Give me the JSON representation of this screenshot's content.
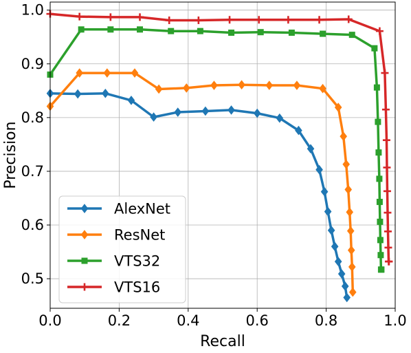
{
  "chart_data": {
    "type": "line",
    "xlabel": "Recall",
    "ylabel": "Precision",
    "xlim": [
      0.0,
      1.0
    ],
    "ylim": [
      0.445,
      1.015
    ],
    "x_ticks": [
      0.0,
      0.2,
      0.4,
      0.6,
      0.8,
      1.0
    ],
    "x_tick_labels": [
      "0.0",
      "0.2",
      "0.4",
      "0.6",
      "0.8",
      "1.0"
    ],
    "y_ticks": [
      0.5,
      0.6,
      0.7,
      0.8,
      0.9,
      1.0
    ],
    "y_tick_labels": [
      "0.5",
      "0.6",
      "0.7",
      "0.8",
      "0.9",
      "1.0"
    ],
    "grid": true,
    "legend_position": "bottom-left",
    "series": [
      {
        "name": "AlexNet",
        "color": "#1f77b4",
        "marker": "diamond",
        "x": [
          0.0,
          0.08,
          0.16,
          0.235,
          0.3,
          0.37,
          0.45,
          0.525,
          0.6,
          0.665,
          0.72,
          0.755,
          0.78,
          0.795,
          0.805,
          0.815,
          0.825,
          0.835,
          0.845,
          0.855,
          0.86
        ],
        "y": [
          0.845,
          0.844,
          0.845,
          0.832,
          0.801,
          0.81,
          0.812,
          0.814,
          0.808,
          0.799,
          0.776,
          0.742,
          0.703,
          0.662,
          0.625,
          0.59,
          0.56,
          0.532,
          0.509,
          0.486,
          0.465
        ]
      },
      {
        "name": "ResNet",
        "color": "#ff7f0e",
        "marker": "diamond",
        "x": [
          0.0,
          0.085,
          0.165,
          0.245,
          0.315,
          0.395,
          0.475,
          0.555,
          0.635,
          0.715,
          0.79,
          0.835,
          0.85,
          0.858,
          0.864,
          0.868,
          0.871,
          0.873,
          0.875,
          0.877
        ],
        "y": [
          0.821,
          0.883,
          0.883,
          0.883,
          0.853,
          0.855,
          0.86,
          0.861,
          0.86,
          0.86,
          0.854,
          0.819,
          0.765,
          0.713,
          0.666,
          0.624,
          0.589,
          0.553,
          0.522,
          0.475
        ]
      },
      {
        "name": "VTS32",
        "color": "#2ca02c",
        "marker": "square",
        "x": [
          0.0,
          0.09,
          0.175,
          0.26,
          0.35,
          0.435,
          0.525,
          0.61,
          0.7,
          0.79,
          0.875,
          0.94,
          0.947,
          0.95,
          0.952,
          0.954,
          0.955,
          0.956,
          0.957,
          0.958,
          0.959,
          0.96
        ],
        "y": [
          0.88,
          0.964,
          0.964,
          0.964,
          0.961,
          0.961,
          0.958,
          0.959,
          0.958,
          0.956,
          0.954,
          0.929,
          0.856,
          0.792,
          0.735,
          0.686,
          0.643,
          0.606,
          0.572,
          0.544,
          0.517,
          0.517
        ]
      },
      {
        "name": "VTS16",
        "color": "#d62728",
        "marker": "plus",
        "x": [
          0.0,
          0.085,
          0.175,
          0.26,
          0.345,
          0.43,
          0.52,
          0.605,
          0.69,
          0.78,
          0.865,
          0.955,
          0.97,
          0.973,
          0.975,
          0.976,
          0.977,
          0.978,
          0.979,
          0.98,
          0.981,
          0.982
        ],
        "y": [
          0.993,
          0.988,
          0.987,
          0.987,
          0.981,
          0.981,
          0.982,
          0.982,
          0.982,
          0.982,
          0.983,
          0.961,
          0.883,
          0.815,
          0.758,
          0.707,
          0.663,
          0.623,
          0.588,
          0.558,
          0.532,
          0.532
        ]
      }
    ]
  }
}
